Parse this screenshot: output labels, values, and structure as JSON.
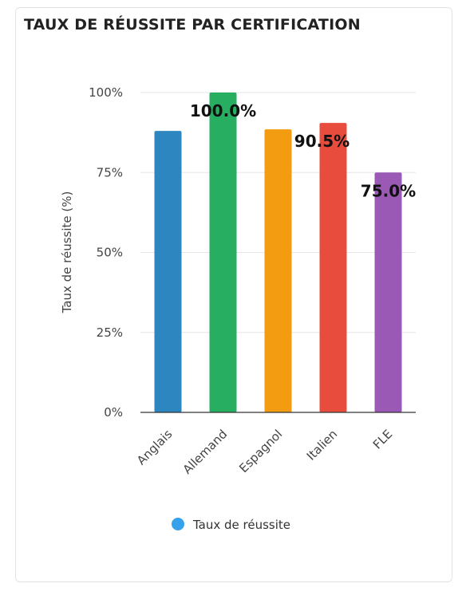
{
  "card": {
    "title": "TAUX DE RÉUSSITE PAR CERTIFICATION"
  },
  "chart_data": {
    "type": "bar",
    "title": "TAUX DE RÉUSSITE PAR CERTIFICATION",
    "categories": [
      "Anglais",
      "Allemand",
      "Espagnol",
      "Italien",
      "FLE"
    ],
    "series": [
      {
        "name": "Taux de réussite",
        "values": [
          88,
          100,
          88.5,
          90.5,
          75
        ]
      }
    ],
    "colors": [
      "#2e86c1",
      "#27ae60",
      "#f39c12",
      "#e74c3c",
      "#9b59b6"
    ],
    "legend_color": "#36a2eb",
    "data_labels": [
      {
        "category": "Allemand",
        "text": "100.0%"
      },
      {
        "category": "Italien",
        "text": "90.5%"
      },
      {
        "category": "FLE",
        "text": "75.0%"
      }
    ],
    "ylabel": "Taux de réussite (%)",
    "xlabel": "",
    "ylim": [
      0,
      100
    ],
    "yticks": [
      "0%",
      "25%",
      "50%",
      "75%",
      "100%"
    ],
    "grid": true,
    "legend": "bottom"
  }
}
